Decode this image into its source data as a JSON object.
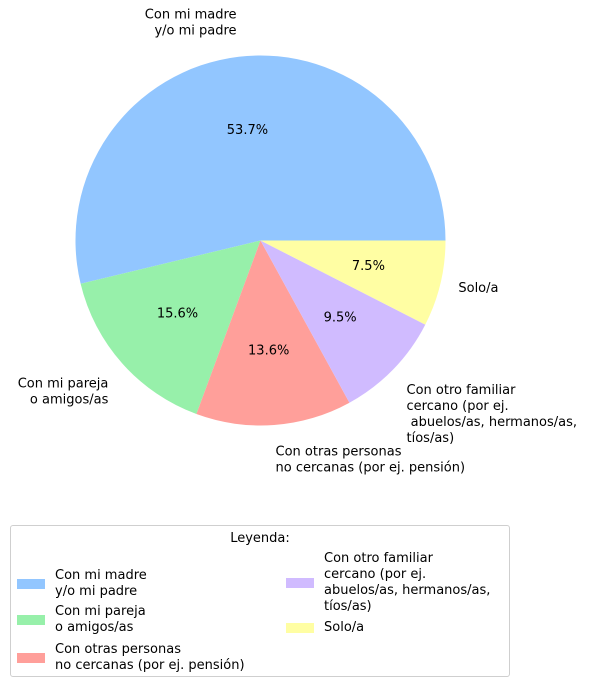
{
  "chart_data": {
    "type": "pie",
    "categories": [
      "Con mi madre\ny/o mi padre",
      "Con mi pareja\no amigos/as",
      "Con otras personas\nno cercanas (por ej. pensión)",
      "Con otro familiar\ncercano (por ej.\n abuelos/as, hermanos/as,\ntíos/as)",
      "Solo/a"
    ],
    "values": [
      53.7,
      15.6,
      13.6,
      9.5,
      7.5
    ],
    "value_labels": [
      "53.7%",
      "15.6%",
      "13.6%",
      "9.5%",
      "7.5%"
    ],
    "colors": [
      "#92c6ff",
      "#97f0aa",
      "#ff9f9a",
      "#d0bbff",
      "#fffea3"
    ],
    "start_angle_deg": 0,
    "direction": "counterclockwise",
    "legend": {
      "title": "Leyenda:",
      "placement": "bottom",
      "columns": 2
    }
  }
}
